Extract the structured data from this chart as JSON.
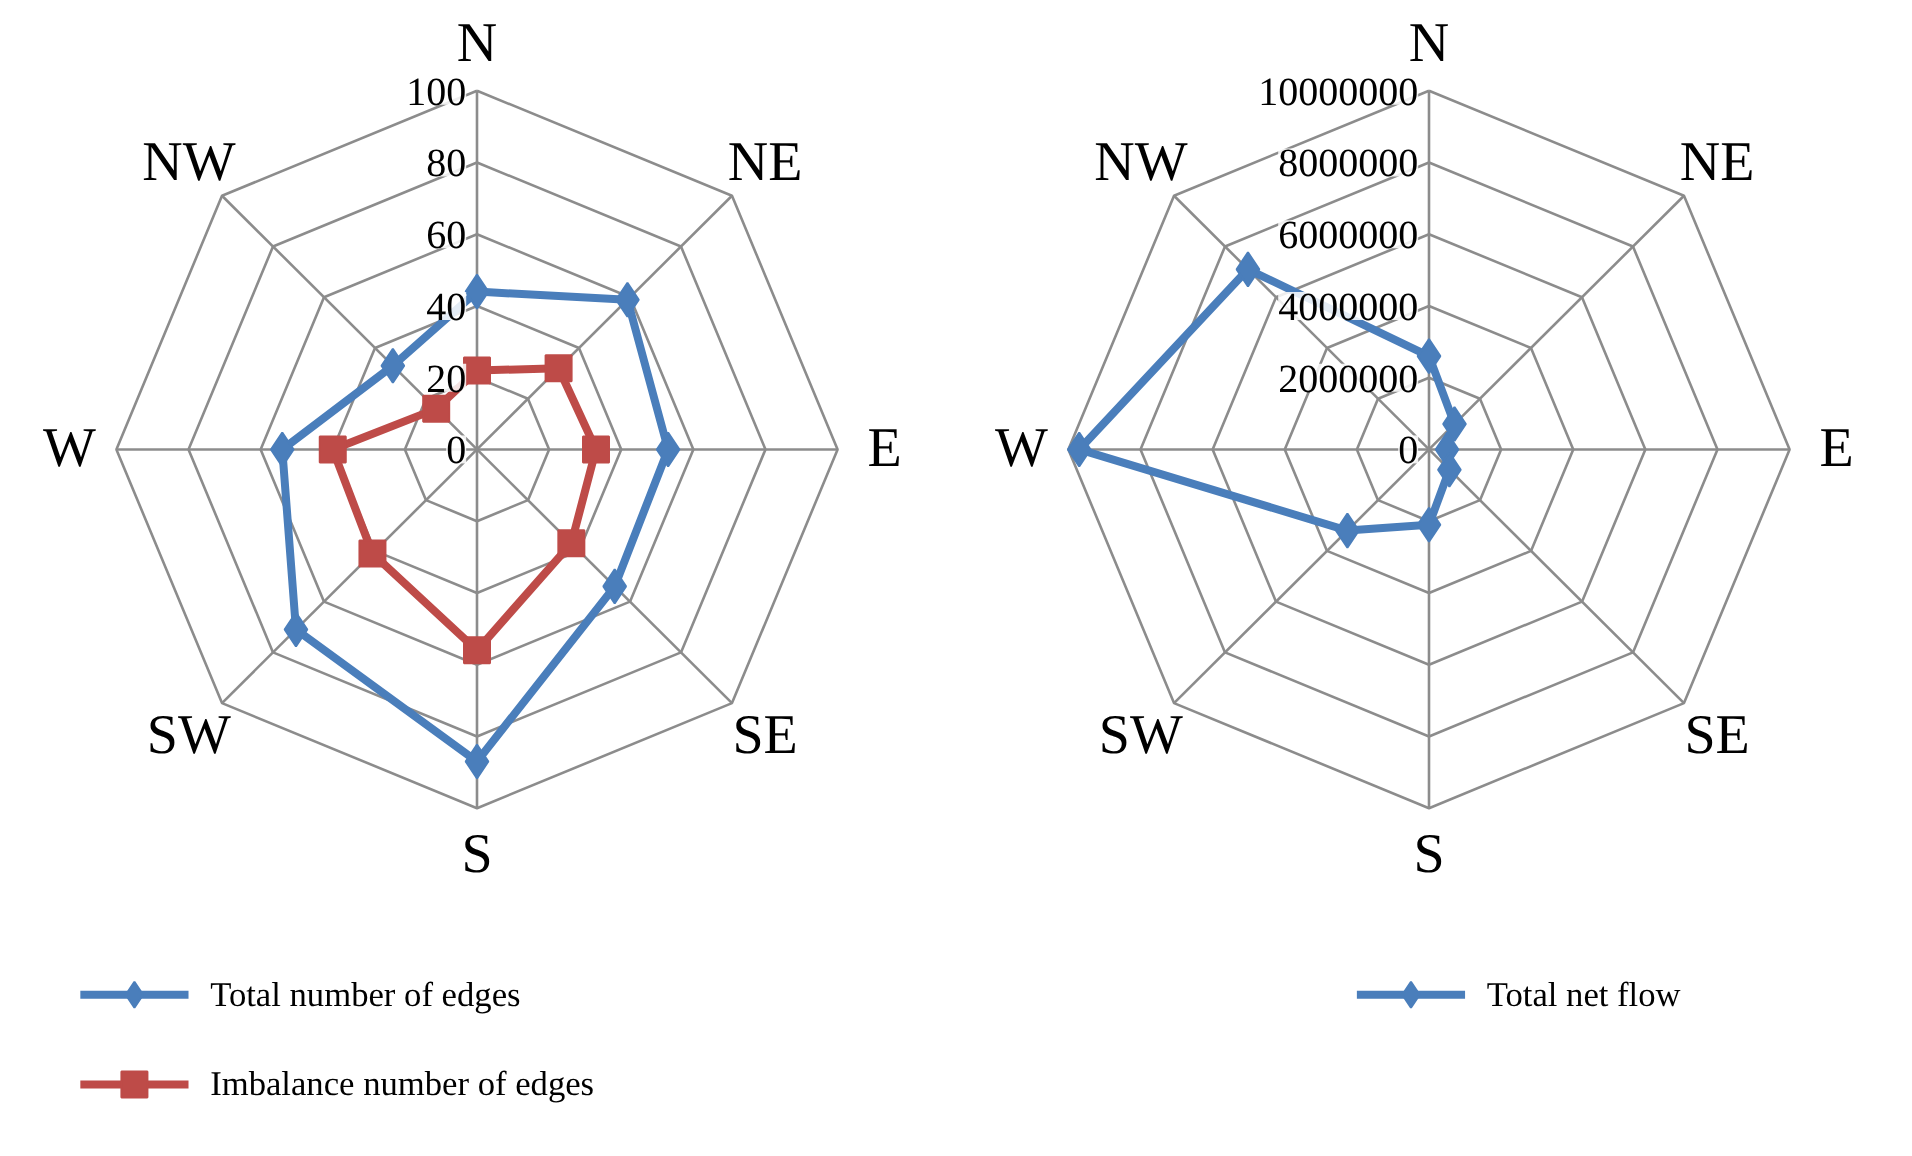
{
  "chart_data": [
    {
      "type": "radar",
      "categories": [
        "N",
        "NE",
        "E",
        "SE",
        "S",
        "SW",
        "W",
        "NW"
      ],
      "ylim": [
        0,
        100
      ],
      "yticks": [
        0,
        20,
        40,
        60,
        80,
        100
      ],
      "legend": "bottom",
      "grid": true,
      "series": [
        {
          "name": "Total number of edges",
          "color": "#4a7ebb",
          "marker": "diamond",
          "values": [
            44,
            59,
            53,
            54,
            87,
            71,
            54,
            33
          ]
        },
        {
          "name": "Imbalance number of edges",
          "color": "#be4b48",
          "marker": "square",
          "values": [
            22,
            32,
            33,
            37,
            56,
            41,
            40,
            16
          ]
        }
      ]
    },
    {
      "type": "radar",
      "categories": [
        "N",
        "NE",
        "E",
        "SE",
        "S",
        "SW",
        "W",
        "NW"
      ],
      "ylim": [
        0,
        10000000
      ],
      "yticks": [
        0,
        2000000,
        4000000,
        6000000,
        8000000,
        10000000
      ],
      "legend": "bottom",
      "grid": true,
      "series": [
        {
          "name": "Total net flow",
          "color": "#4a7ebb",
          "marker": "diamond",
          "values": [
            2600000,
            1000000,
            500000,
            800000,
            2100000,
            3200000,
            9700000,
            7100000
          ]
        }
      ]
    }
  ]
}
